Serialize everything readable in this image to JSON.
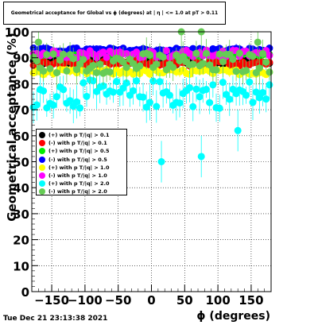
{
  "chart_data": {
    "type": "scatter",
    "title": "Geometrical acceptance for Global vs ϕ (degrees) at | η | <= 1.0 at pT > 0.11",
    "xlabel": "ϕ (degrees)",
    "ylabel": "Geometrical acceptance (%)",
    "xlim": [
      -180,
      180
    ],
    "ylim": [
      0,
      100
    ],
    "x_ticks": [
      "−150",
      "−100",
      "−50",
      "0",
      "50",
      "100",
      "150"
    ],
    "y_ticks": [
      "0",
      "10",
      "20",
      "30",
      "40",
      "50",
      "60",
      "70",
      "80",
      "90",
      "100"
    ],
    "grid": true,
    "legend_position": "middle-left",
    "series": [
      {
        "name": "(+) with p T/|q| > 0.1",
        "color": "#000000",
        "mean": 88.5,
        "spread": 1.2,
        "err": 1.2
      },
      {
        "name": "(-) with p T/|q| > 0.1",
        "color": "#ff0000",
        "mean": 88.0,
        "spread": 1.2,
        "err": 1.2
      },
      {
        "name": "(+) with p T/|q| > 0.5",
        "color": "#00ee00",
        "mean": 91.5,
        "spread": 1.0,
        "err": 1.2
      },
      {
        "name": "(-) with p T/|q| > 0.5",
        "color": "#0000ff",
        "mean": 93.0,
        "spread": 0.8,
        "err": 1.2
      },
      {
        "name": "(+) with p T/|q| > 1.0",
        "color": "#ffff00",
        "mean": 84.5,
        "spread": 1.0,
        "err": 1.5
      },
      {
        "name": "(-) with p T/|q| > 1.0",
        "color": "#ff00ff",
        "mean": 91.5,
        "spread": 1.5,
        "err": 1.5
      },
      {
        "name": "(+) with p T/|q| > 2.0",
        "color": "#00ffff",
        "mean": 76.0,
        "spread": 5.5,
        "err": 5.0
      },
      {
        "name": "(-) with p T/|q| > 2.0",
        "color": "#66cc55",
        "mean": 88.0,
        "spread": 4.0,
        "err": 4.5
      }
    ],
    "outliers": [
      {
        "series": 6,
        "x": 15,
        "y": 50
      },
      {
        "series": 6,
        "x": 75,
        "y": 52
      },
      {
        "series": 6,
        "x": 130,
        "y": 62
      },
      {
        "series": 7,
        "x": 45,
        "y": 100
      },
      {
        "series": 7,
        "x": 75,
        "y": 100
      },
      {
        "series": 7,
        "x": -170,
        "y": 96
      },
      {
        "series": 7,
        "x": 160,
        "y": 96
      }
    ]
  },
  "timestamp": "Tue Dec 21 23:13:38 2021"
}
